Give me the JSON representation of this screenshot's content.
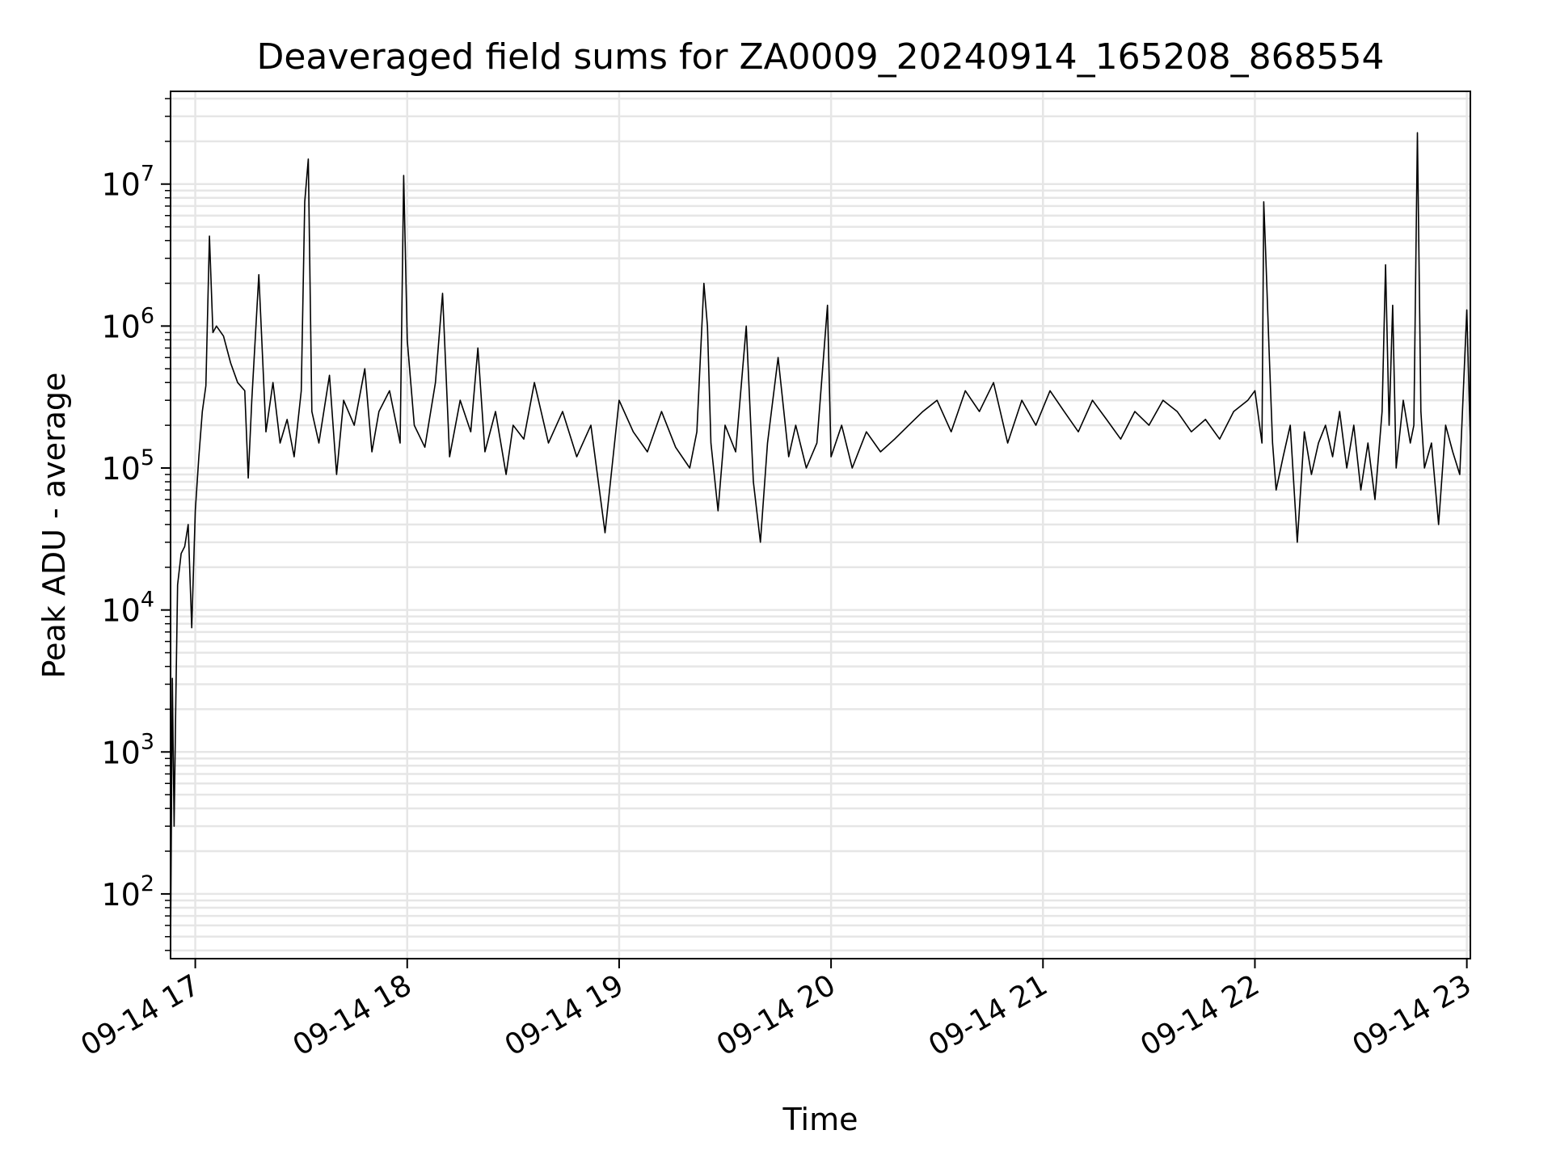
{
  "chart_data": {
    "type": "line",
    "title": "Deaveraged field sums for ZA0009_20240914_165208_868554",
    "xlabel": "Time",
    "ylabel": "Peak ADU - average",
    "yscale": "log",
    "ylim": [
      35,
      45000000
    ],
    "xlim": [
      "09-14 16:53",
      "09-14 23:01"
    ],
    "grid": true,
    "x_ticks": [
      "09-14 17",
      "09-14 18",
      "09-14 19",
      "09-14 20",
      "09-14 21",
      "09-14 22",
      "09-14 23"
    ],
    "y_ticks": [
      {
        "base": "10",
        "exp": "2"
      },
      {
        "base": "10",
        "exp": "3"
      },
      {
        "base": "10",
        "exp": "4"
      },
      {
        "base": "10",
        "exp": "5"
      },
      {
        "base": "10",
        "exp": "6"
      },
      {
        "base": "10",
        "exp": "7"
      }
    ],
    "series": [
      {
        "color": "#000000",
        "points": [
          [
            "16:53",
            40
          ],
          [
            "16:53:30",
            3300
          ],
          [
            "16:54",
            300
          ],
          [
            "16:54:30",
            2500
          ],
          [
            "16:55",
            15000
          ],
          [
            "16:56",
            25000
          ],
          [
            "16:57",
            28000
          ],
          [
            "16:58",
            40000
          ],
          [
            "16:59",
            7500
          ],
          [
            "17:00",
            50000
          ],
          [
            "17:01",
            120000
          ],
          [
            "17:02",
            250000
          ],
          [
            "17:03",
            380000
          ],
          [
            "17:04",
            4300000
          ],
          [
            "17:05",
            900000
          ],
          [
            "17:06",
            1000000
          ],
          [
            "17:08",
            850000
          ],
          [
            "17:10",
            550000
          ],
          [
            "17:12",
            400000
          ],
          [
            "17:14",
            350000
          ],
          [
            "17:15",
            85000
          ],
          [
            "17:16",
            300000
          ],
          [
            "17:18",
            2300000
          ],
          [
            "17:20",
            180000
          ],
          [
            "17:22",
            400000
          ],
          [
            "17:24",
            150000
          ],
          [
            "17:26",
            220000
          ],
          [
            "17:28",
            120000
          ],
          [
            "17:30",
            350000
          ],
          [
            "17:31",
            7500000
          ],
          [
            "17:32",
            15000000
          ],
          [
            "17:33",
            250000
          ],
          [
            "17:35",
            150000
          ],
          [
            "17:38",
            450000
          ],
          [
            "17:40",
            90000
          ],
          [
            "17:42",
            300000
          ],
          [
            "17:45",
            200000
          ],
          [
            "17:48",
            500000
          ],
          [
            "17:50",
            130000
          ],
          [
            "17:52",
            250000
          ],
          [
            "17:55",
            350000
          ],
          [
            "17:58",
            150000
          ],
          [
            "17:59",
            11500000
          ],
          [
            "18:00",
            800000
          ],
          [
            "18:02",
            200000
          ],
          [
            "18:05",
            140000
          ],
          [
            "18:08",
            400000
          ],
          [
            "18:10",
            1700000
          ],
          [
            "18:12",
            120000
          ],
          [
            "18:15",
            300000
          ],
          [
            "18:18",
            180000
          ],
          [
            "18:20",
            700000
          ],
          [
            "18:22",
            130000
          ],
          [
            "18:25",
            250000
          ],
          [
            "18:28",
            90000
          ],
          [
            "18:30",
            200000
          ],
          [
            "18:33",
            160000
          ],
          [
            "18:36",
            400000
          ],
          [
            "18:40",
            150000
          ],
          [
            "18:44",
            250000
          ],
          [
            "18:48",
            120000
          ],
          [
            "18:52",
            200000
          ],
          [
            "18:56",
            35000
          ],
          [
            "19:00",
            300000
          ],
          [
            "19:04",
            180000
          ],
          [
            "19:08",
            130000
          ],
          [
            "19:12",
            250000
          ],
          [
            "19:16",
            140000
          ],
          [
            "19:20",
            100000
          ],
          [
            "19:22",
            180000
          ],
          [
            "19:24",
            2000000
          ],
          [
            "19:25",
            1000000
          ],
          [
            "19:26",
            150000
          ],
          [
            "19:28",
            50000
          ],
          [
            "19:30",
            200000
          ],
          [
            "19:33",
            130000
          ],
          [
            "19:36",
            1000000
          ],
          [
            "19:38",
            80000
          ],
          [
            "19:40",
            30000
          ],
          [
            "19:42",
            150000
          ],
          [
            "19:45",
            600000
          ],
          [
            "19:48",
            120000
          ],
          [
            "19:50",
            200000
          ],
          [
            "19:53",
            100000
          ],
          [
            "19:56",
            150000
          ],
          [
            "19:59",
            1400000
          ],
          [
            "20:00",
            120000
          ],
          [
            "20:03",
            200000
          ],
          [
            "20:06",
            100000
          ],
          [
            "20:10",
            180000
          ],
          [
            "20:14",
            130000
          ],
          [
            "20:18",
            160000
          ],
          [
            "20:22",
            200000
          ],
          [
            "20:26",
            250000
          ],
          [
            "20:30",
            300000
          ],
          [
            "20:34",
            180000
          ],
          [
            "20:38",
            350000
          ],
          [
            "20:42",
            250000
          ],
          [
            "20:46",
            400000
          ],
          [
            "20:50",
            150000
          ],
          [
            "20:54",
            300000
          ],
          [
            "20:58",
            200000
          ],
          [
            "21:02",
            350000
          ],
          [
            "21:06",
            250000
          ],
          [
            "21:10",
            180000
          ],
          [
            "21:14",
            300000
          ],
          [
            "21:18",
            220000
          ],
          [
            "21:22",
            160000
          ],
          [
            "21:26",
            250000
          ],
          [
            "21:30",
            200000
          ],
          [
            "21:34",
            300000
          ],
          [
            "21:38",
            250000
          ],
          [
            "21:42",
            180000
          ],
          [
            "21:46",
            220000
          ],
          [
            "21:50",
            160000
          ],
          [
            "21:54",
            250000
          ],
          [
            "21:58",
            300000
          ],
          [
            "22:00",
            350000
          ],
          [
            "22:02",
            150000
          ],
          [
            "22:02:30",
            7500000
          ],
          [
            "22:03",
            3500000
          ],
          [
            "22:04",
            700000
          ],
          [
            "22:05",
            150000
          ],
          [
            "22:06",
            70000
          ],
          [
            "22:08",
            120000
          ],
          [
            "22:10",
            200000
          ],
          [
            "22:12",
            30000
          ],
          [
            "22:14",
            180000
          ],
          [
            "22:16",
            90000
          ],
          [
            "22:18",
            150000
          ],
          [
            "22:20",
            200000
          ],
          [
            "22:22",
            120000
          ],
          [
            "22:24",
            250000
          ],
          [
            "22:26",
            100000
          ],
          [
            "22:28",
            200000
          ],
          [
            "22:30",
            70000
          ],
          [
            "22:32",
            150000
          ],
          [
            "22:34",
            60000
          ],
          [
            "22:36",
            250000
          ],
          [
            "22:37",
            2700000
          ],
          [
            "22:38",
            200000
          ],
          [
            "22:39",
            1400000
          ],
          [
            "22:40",
            100000
          ],
          [
            "22:42",
            300000
          ],
          [
            "22:44",
            150000
          ],
          [
            "22:45",
            200000
          ],
          [
            "22:46",
            23000000
          ],
          [
            "22:47",
            250000
          ],
          [
            "22:48",
            100000
          ],
          [
            "22:50",
            150000
          ],
          [
            "22:52",
            40000
          ],
          [
            "22:54",
            200000
          ],
          [
            "22:56",
            130000
          ],
          [
            "22:58",
            90000
          ],
          [
            "23:00",
            1300000
          ],
          [
            "23:01",
            150000
          ]
        ]
      }
    ]
  }
}
